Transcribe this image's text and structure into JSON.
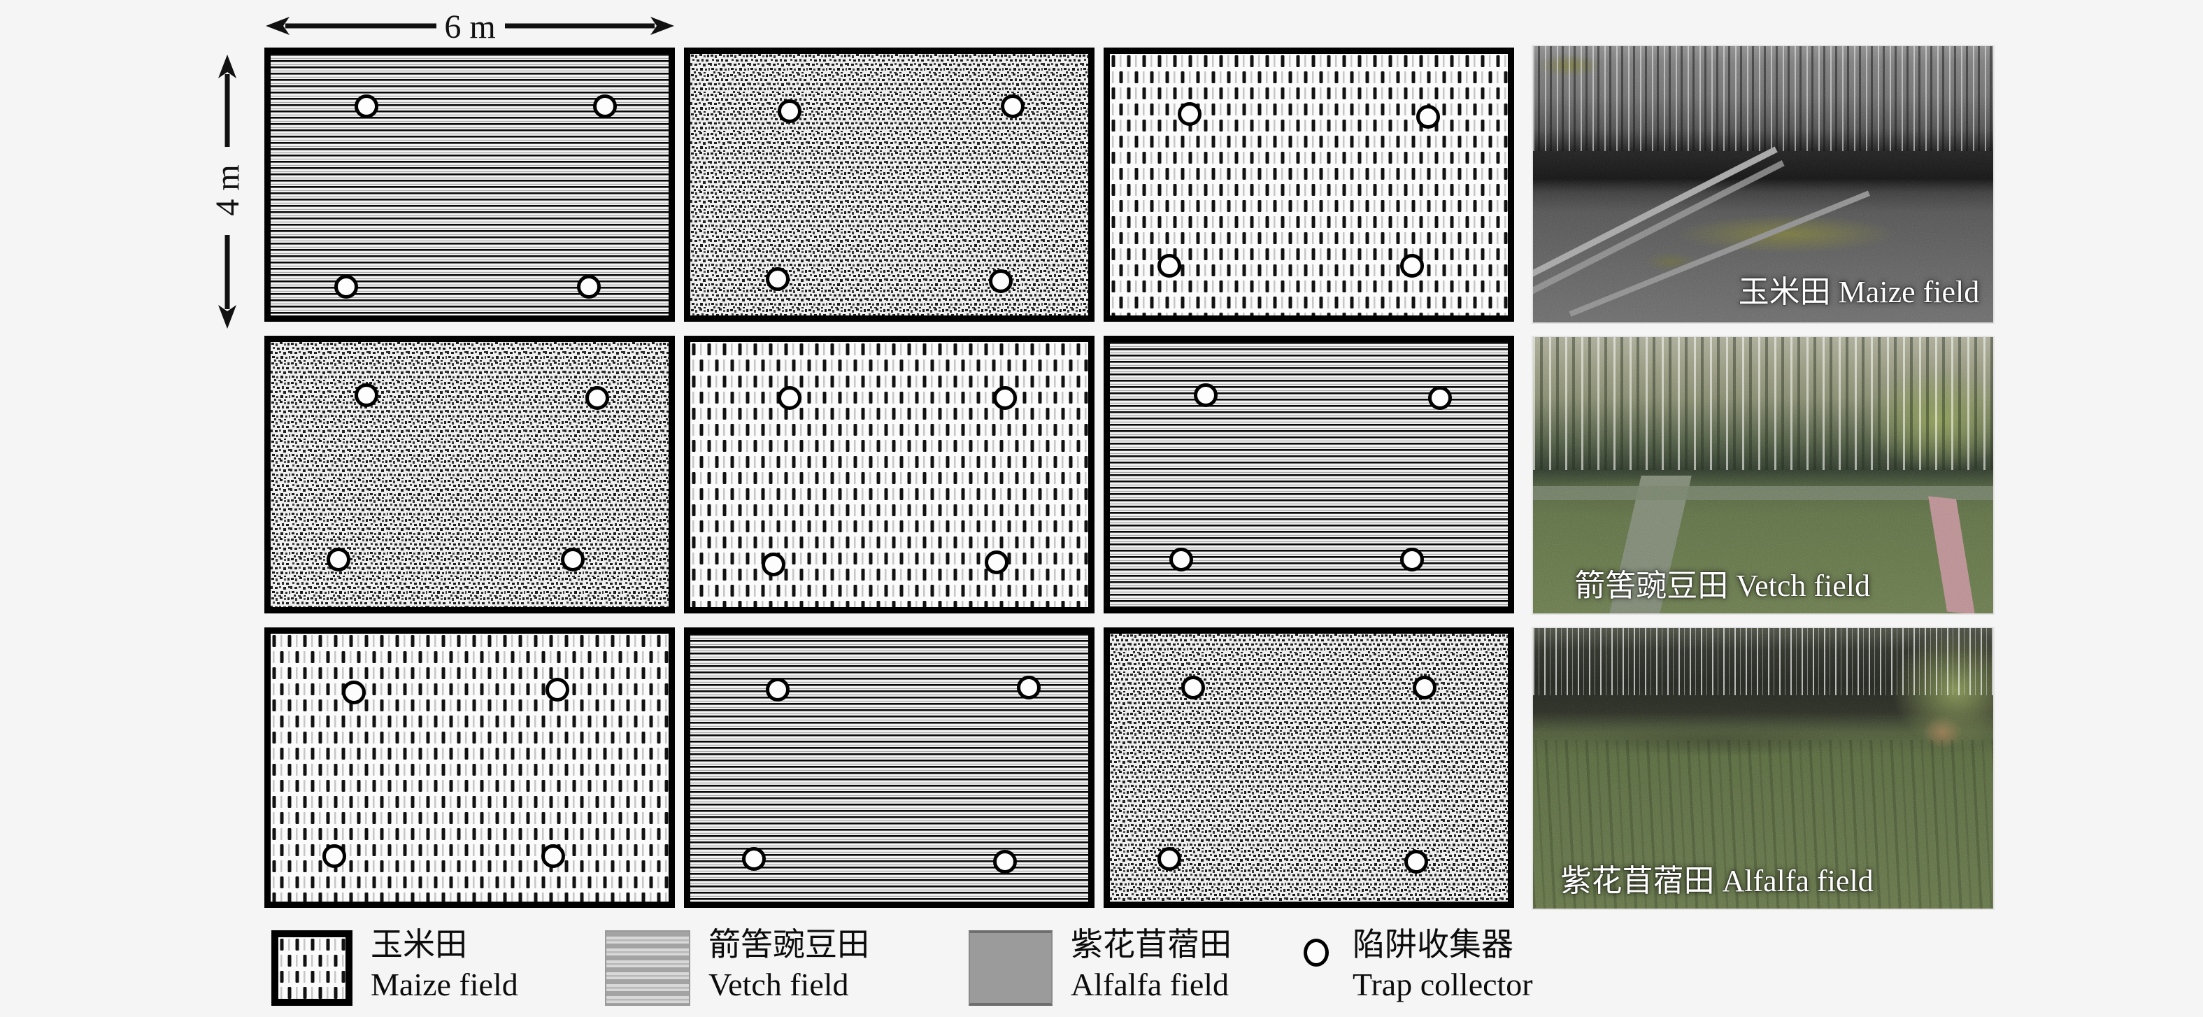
{
  "figure": {
    "background": "#f5f5f5",
    "dimensions": {
      "width_label": "6 m",
      "height_label": "4 m"
    },
    "grid": {
      "rows": 3,
      "cols": 3,
      "plots": [
        {
          "row": 1,
          "col": 1,
          "type": "vetch",
          "traps": [
            [
              24,
              20
            ],
            [
              84,
              20
            ],
            [
              19,
              89
            ],
            [
              80,
              89
            ]
          ]
        },
        {
          "row": 1,
          "col": 2,
          "type": "alfalfa",
          "traps": [
            [
              25,
              22
            ],
            [
              81,
              20
            ],
            [
              22,
              86
            ],
            [
              78,
              87
            ]
          ]
        },
        {
          "row": 1,
          "col": 3,
          "type": "maize",
          "traps": [
            [
              20,
              23
            ],
            [
              80,
              24
            ],
            [
              15,
              81
            ],
            [
              76,
              81
            ]
          ]
        },
        {
          "row": 2,
          "col": 1,
          "type": "alfalfa",
          "traps": [
            [
              24,
              20
            ],
            [
              82,
              21
            ],
            [
              17,
              82
            ],
            [
              76,
              82
            ]
          ]
        },
        {
          "row": 2,
          "col": 2,
          "type": "maize",
          "traps": [
            [
              25,
              21
            ],
            [
              79,
              21
            ],
            [
              21,
              84
            ],
            [
              77,
              83
            ]
          ]
        },
        {
          "row": 2,
          "col": 3,
          "type": "vetch",
          "traps": [
            [
              24,
              20
            ],
            [
              83,
              21
            ],
            [
              18,
              82
            ],
            [
              76,
              82
            ]
          ]
        },
        {
          "row": 3,
          "col": 1,
          "type": "maize",
          "traps": [
            [
              21,
              22
            ],
            [
              72,
              21
            ],
            [
              16,
              83
            ],
            [
              71,
              83
            ]
          ]
        },
        {
          "row": 3,
          "col": 2,
          "type": "vetch",
          "traps": [
            [
              22,
              21
            ],
            [
              85,
              20
            ],
            [
              16,
              84
            ],
            [
              79,
              85
            ]
          ]
        },
        {
          "row": 3,
          "col": 3,
          "type": "alfalfa",
          "traps": [
            [
              21,
              20
            ],
            [
              79,
              20
            ],
            [
              15,
              84
            ],
            [
              77,
              85
            ]
          ]
        }
      ]
    },
    "photos": [
      {
        "type": "maize",
        "label": "玉米田 Maize field"
      },
      {
        "type": "vetch",
        "label": "箭筈豌豆田 Vetch field"
      },
      {
        "type": "alfalfa",
        "label": "紫花苜蓿田 Alfalfa field"
      }
    ],
    "legend": [
      {
        "swatch": "maize",
        "label_zh": "玉米田",
        "label_en": "Maize field"
      },
      {
        "swatch": "vetch",
        "label_zh": "箭筈豌豆田",
        "label_en": "Vetch field"
      },
      {
        "swatch": "alfalfa",
        "label_zh": "紫花苜蓿田",
        "label_en": "Alfalfa field"
      },
      {
        "swatch": "trap",
        "label_zh": "陷阱收集器",
        "label_en": "Trap collector"
      }
    ],
    "colors": {
      "pattern_ink": "#121212",
      "legend_alfalfa_gray": "#9b9b9b",
      "photo_label": "#ffffff"
    }
  }
}
